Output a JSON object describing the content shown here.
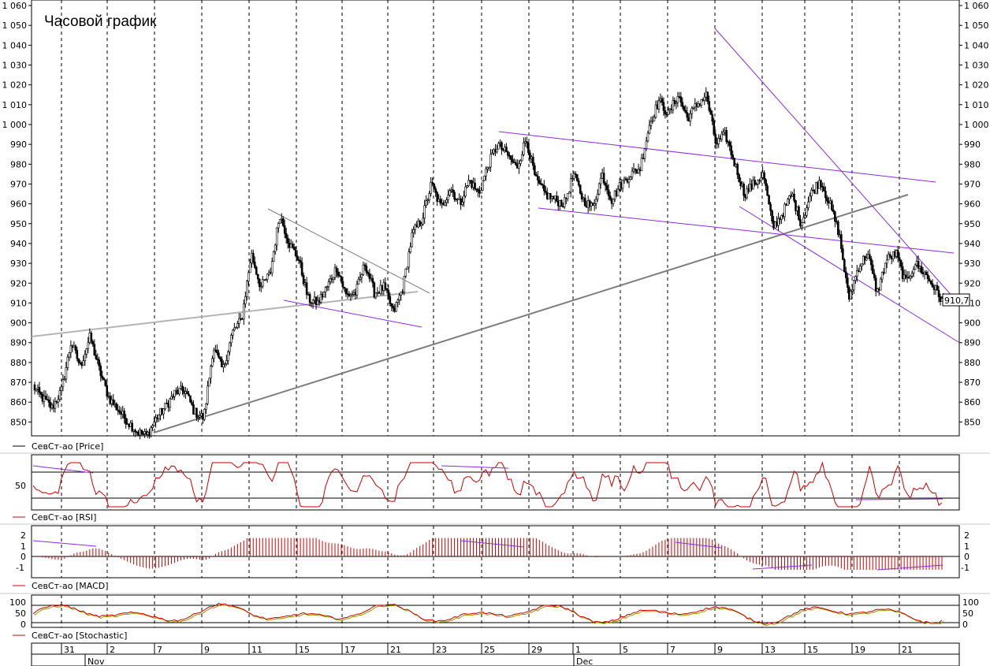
{
  "title": "Часовой график",
  "last_price_label": "910,7",
  "colors": {
    "candle": "#000000",
    "trend_purple": "#8a2be2",
    "trend_gray_dark": "#7f7f7f",
    "trend_gray_light": "#b4b4b4",
    "indicator_red": "#cc0000",
    "stoch_green": "#9a9a00",
    "grid": "#000000"
  },
  "panels": {
    "price": {
      "label": "СевСт-ао [Price]"
    },
    "rsi": {
      "label": "СевСт-ао [RSI]",
      "tick": "50"
    },
    "macd": {
      "label": "СевСт-ао [MACD]",
      "ticks": [
        "2",
        "1",
        "0",
        "-1"
      ]
    },
    "stoch": {
      "label": "СевСт-ао [Stochastic]",
      "ticks": [
        "100",
        "50",
        "0"
      ]
    }
  },
  "xaxis": {
    "day_labels": [
      "31",
      "2",
      "7",
      "9",
      "11",
      "15",
      "17",
      "21",
      "23",
      "25",
      "29",
      "1",
      "5",
      "7",
      "9",
      "13",
      "15",
      "19",
      "21"
    ],
    "month_labels": [
      "Nov",
      "Dec"
    ]
  },
  "chart_data": {
    "type": "candlestick",
    "title": "Часовой график",
    "ylim": [
      843,
      1062
    ],
    "y_ticks": [
      850,
      860,
      870,
      880,
      890,
      900,
      910,
      920,
      930,
      940,
      950,
      960,
      970,
      980,
      990,
      1000,
      1010,
      1020,
      1030,
      1040,
      1050,
      1060
    ],
    "y_tick_labels": [
      "850",
      "860",
      "870",
      "880",
      "890",
      "900",
      "910",
      "920",
      "930",
      "940",
      "950",
      "960",
      "970",
      "980",
      "990",
      "1 000",
      "1 010",
      "1 020",
      "1 030",
      "1 040",
      "1 050",
      "1 060"
    ],
    "price_path": [
      868,
      862,
      857,
      866,
      890,
      878,
      893,
      876,
      862,
      856,
      850,
      845,
      843,
      852,
      858,
      865,
      866,
      855,
      852,
      888,
      876,
      895,
      902,
      935,
      918,
      925,
      955,
      940,
      932,
      912,
      910,
      918,
      928,
      914,
      915,
      930,
      915,
      918,
      905,
      918,
      945,
      952,
      970,
      958,
      968,
      960,
      972,
      965,
      980,
      990,
      985,
      978,
      993,
      972,
      965,
      962,
      960,
      975,
      962,
      958,
      975,
      962,
      970,
      975,
      978,
      1000,
      1012,
      1005,
      1015,
      1003,
      1010,
      1015,
      990,
      995,
      980,
      965,
      970,
      975,
      948,
      955,
      965,
      950,
      965,
      972,
      960,
      945,
      912,
      928,
      935,
      915,
      932,
      935,
      920,
      930,
      925,
      918,
      910
    ]
  }
}
